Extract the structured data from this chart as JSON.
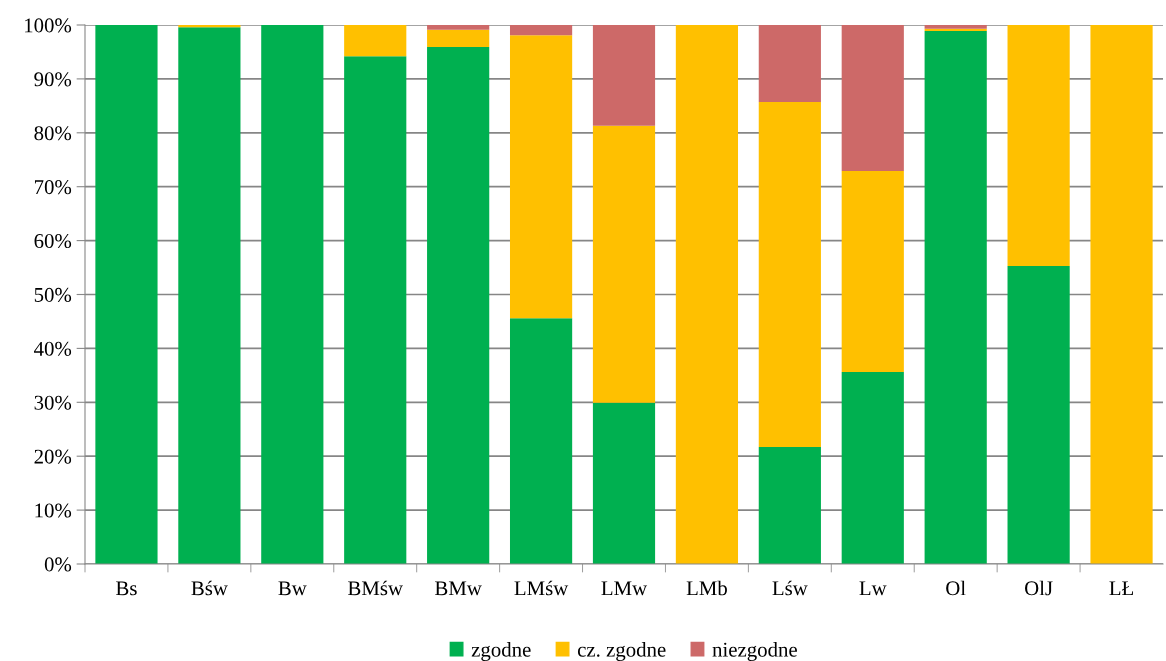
{
  "chart_data": {
    "type": "bar",
    "stacked": true,
    "categories": [
      "Bs",
      "Bśw",
      "Bw",
      "BMśw",
      "BMw",
      "LMśw",
      "LMw",
      "LMb",
      "Lśw",
      "Lw",
      "Ol",
      "OlJ",
      "LŁ"
    ],
    "series": [
      {
        "name": "zgodne",
        "color": "#00b050",
        "values": [
          100,
          99.6,
          100,
          94.2,
          95.9,
          45.6,
          29.9,
          0,
          21.7,
          35.6,
          98.9,
          55.3,
          0
        ]
      },
      {
        "name": "cz. zgodne",
        "color": "#ffc000",
        "values": [
          0,
          0.4,
          0,
          5.8,
          3.2,
          52.5,
          51.4,
          100,
          64.0,
          37.3,
          0.4,
          44.7,
          100
        ]
      },
      {
        "name": "niezgodne",
        "color": "#cd6968",
        "values": [
          0,
          0,
          0,
          0,
          0.9,
          1.9,
          18.7,
          0,
          14.3,
          27.1,
          0.7,
          0,
          0
        ]
      }
    ],
    "ylim": [
      0,
      100
    ],
    "yticks": [
      {
        "value": 0,
        "label": "0%"
      },
      {
        "value": 10,
        "label": "10%"
      },
      {
        "value": 20,
        "label": "20%"
      },
      {
        "value": 30,
        "label": "30%"
      },
      {
        "value": 40,
        "label": "40%"
      },
      {
        "value": 50,
        "label": "50%"
      },
      {
        "value": 60,
        "label": "60%"
      },
      {
        "value": 70,
        "label": "70%"
      },
      {
        "value": 80,
        "label": "80%"
      },
      {
        "value": 90,
        "label": "90%"
      },
      {
        "value": 100,
        "label": "100%"
      }
    ],
    "grid": "y",
    "legend": "bottom"
  }
}
